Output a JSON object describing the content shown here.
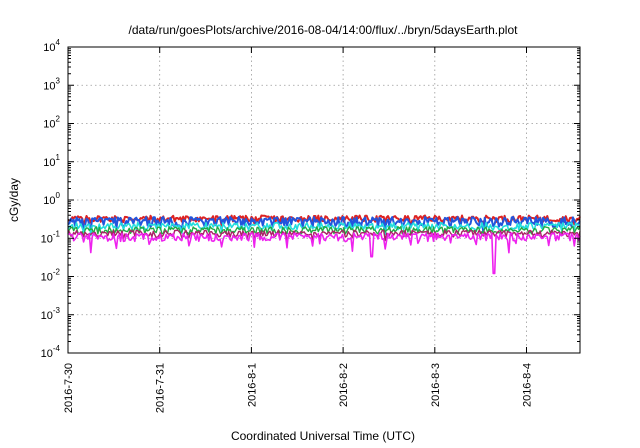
{
  "chart_data": {
    "type": "line",
    "title": "/data/run/goesPlots/archive/2016-08-04/14:00/flux/../bryn/5daysEarth.plot",
    "xlabel": "Coordinated Universal Time (UTC)",
    "ylabel": "cGy/day",
    "y_scale": "log",
    "ylim": [
      0.0001,
      10000
    ],
    "y_ticks": [
      {
        "value": 0.0001,
        "base": "10",
        "exp": "-4"
      },
      {
        "value": 0.001,
        "base": "10",
        "exp": "-3"
      },
      {
        "value": 0.01,
        "base": "10",
        "exp": "-2"
      },
      {
        "value": 0.1,
        "base": "10",
        "exp": "-1"
      },
      {
        "value": 1,
        "base": "10",
        "exp": "0"
      },
      {
        "value": 10,
        "base": "10",
        "exp": "1"
      },
      {
        "value": 100,
        "base": "10",
        "exp": "2"
      },
      {
        "value": 1000,
        "base": "10",
        "exp": "3"
      },
      {
        "value": 10000,
        "base": "10",
        "exp": "4"
      }
    ],
    "xlim": [
      "2016-07-30T00:00",
      "2016-08-04T14:00"
    ],
    "x_ticks": [
      {
        "time": "2016-07-30T00:00",
        "label": "2016-7-30"
      },
      {
        "time": "2016-07-31T00:00",
        "label": "2016-7-31"
      },
      {
        "time": "2016-08-01T00:00",
        "label": "2016-8-1"
      },
      {
        "time": "2016-08-02T00:00",
        "label": "2016-8-2"
      },
      {
        "time": "2016-08-03T00:00",
        "label": "2016-8-3"
      },
      {
        "time": "2016-08-04T00:00",
        "label": "2016-8-4"
      }
    ],
    "grid": true,
    "legend": "none",
    "series": [
      {
        "color": "#dd2222",
        "level": 0.33,
        "spread": 0.07,
        "dip_depth": 0.35,
        "width": 2.0
      },
      {
        "color": "#2255dd",
        "level": 0.28,
        "spread": 0.09,
        "dip_depth": 0.45,
        "width": 2.0
      },
      {
        "color": "#22dddd",
        "level": 0.21,
        "spread": 0.05,
        "dip_depth": 0.3,
        "width": 1.6
      },
      {
        "color": "#22aa44",
        "level": 0.165,
        "spread": 0.04,
        "dip_depth": 0.25,
        "width": 1.4
      },
      {
        "color": "#aa2266",
        "level": 0.135,
        "spread": 0.03,
        "dip_depth": 0.25,
        "width": 1.4
      },
      {
        "color": "#ee22ee",
        "level": 0.11,
        "spread": 0.03,
        "dip_depth": 0.6,
        "width": 1.6
      }
    ],
    "magenta_deep_dips": [
      {
        "time": "2016-08-02T07:30",
        "value": 0.033
      },
      {
        "time": "2016-08-03T15:30",
        "value": 0.012
      }
    ]
  }
}
